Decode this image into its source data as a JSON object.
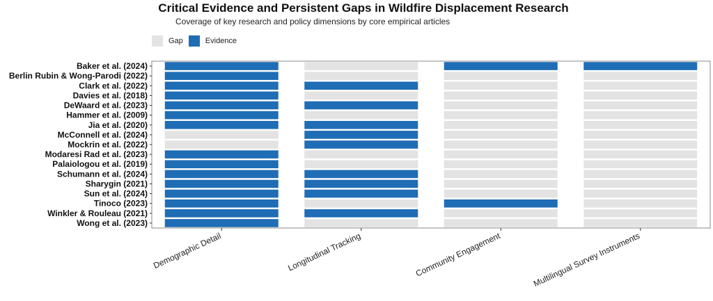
{
  "chart_data": {
    "type": "heatmap",
    "title": "Critical Evidence and Persistent Gaps in Wildfire Displacement Research",
    "subtitle": "Coverage of key research and policy dimensions by core empirical articles",
    "legend": {
      "placement": "top-left",
      "entries": [
        {
          "label": "Gap",
          "color": "#e3e3e3"
        },
        {
          "label": "Evidence",
          "color": "#1f6db5"
        }
      ]
    },
    "xlabel": "",
    "ylabel": "",
    "categories": [
      "Demographic Detail",
      "Longitudinal Tracking",
      "Community Engagement",
      "Multilingual Survey Instruments"
    ],
    "rows": [
      "Baker et al. (2024)",
      "Berlin Rubin & Wong-Parodi (2022)",
      "Clark et al. (2022)",
      "Davies et al. (2018)",
      "DeWaard et al. (2023)",
      "Hammer et al. (2009)",
      "Jia et al. (2020)",
      "McConnell et al. (2024)",
      "Mockrin et al. (2022)",
      "Modaresi Rad et al. (2023)",
      "Palaiologou et al. (2019)",
      "Schumann et al. (2024)",
      "Sharygin (2021)",
      "Sun et al. (2024)",
      "Tinoco (2023)",
      "Winkler & Rouleau (2021)",
      "Wong et al. (2023)"
    ],
    "values": [
      [
        "Evidence",
        "Gap",
        "Evidence",
        "Evidence"
      ],
      [
        "Evidence",
        "Gap",
        "Gap",
        "Gap"
      ],
      [
        "Evidence",
        "Evidence",
        "Gap",
        "Gap"
      ],
      [
        "Evidence",
        "Gap",
        "Gap",
        "Gap"
      ],
      [
        "Evidence",
        "Evidence",
        "Gap",
        "Gap"
      ],
      [
        "Evidence",
        "Gap",
        "Gap",
        "Gap"
      ],
      [
        "Evidence",
        "Evidence",
        "Gap",
        "Gap"
      ],
      [
        "Gap",
        "Evidence",
        "Gap",
        "Gap"
      ],
      [
        "Gap",
        "Evidence",
        "Gap",
        "Gap"
      ],
      [
        "Evidence",
        "Gap",
        "Gap",
        "Gap"
      ],
      [
        "Evidence",
        "Gap",
        "Gap",
        "Gap"
      ],
      [
        "Evidence",
        "Evidence",
        "Gap",
        "Gap"
      ],
      [
        "Evidence",
        "Evidence",
        "Gap",
        "Gap"
      ],
      [
        "Evidence",
        "Evidence",
        "Gap",
        "Gap"
      ],
      [
        "Evidence",
        "Gap",
        "Evidence",
        "Gap"
      ],
      [
        "Evidence",
        "Evidence",
        "Gap",
        "Gap"
      ],
      [
        "Evidence",
        "Gap",
        "Gap",
        "Gap"
      ]
    ],
    "grid": false
  }
}
